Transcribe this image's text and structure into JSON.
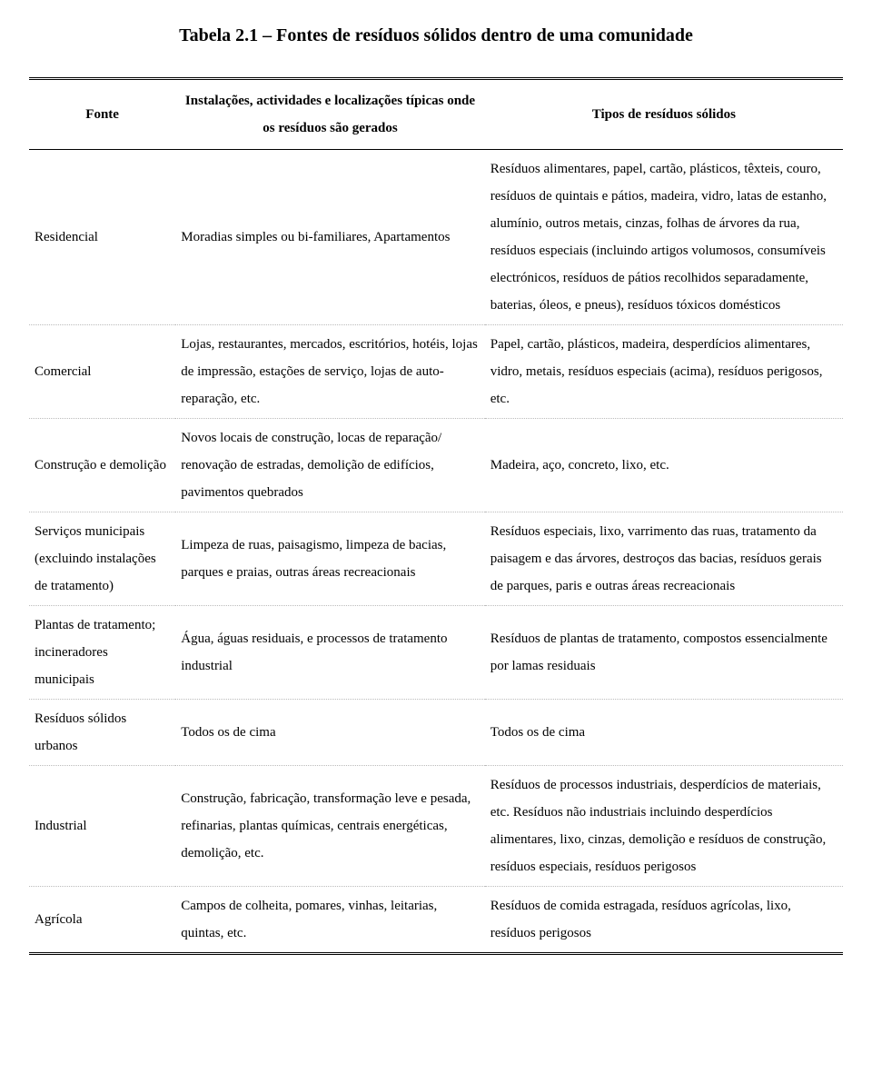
{
  "title": "Tabela 2.1 – Fontes de resíduos sólidos dentro de uma comunidade",
  "columns": {
    "c1": "Fonte",
    "c2": "Instalações, actividades e localizações típicas onde os resíduos são gerados",
    "c3": "Tipos de resíduos sólidos"
  },
  "rows": [
    {
      "fonte": "Residencial",
      "inst": "Moradias simples ou bi-familiares, Apartamentos",
      "tipos": "Resíduos alimentares, papel, cartão, plásticos, têxteis, couro, resíduos de quintais e pátios, madeira, vidro, latas de estanho, alumínio, outros metais, cinzas, folhas de árvores da rua, resíduos especiais (incluindo artigos volumosos, consumíveis electrónicos, resíduos de pátios recolhidos separadamente, baterias, óleos, e pneus), resíduos tóxicos domésticos"
    },
    {
      "fonte": "Comercial",
      "inst": "Lojas, restaurantes, mercados, escritórios, hotéis, lojas de impressão, estações de serviço, lojas de auto-reparação, etc.",
      "tipos": "Papel, cartão, plásticos, madeira, desperdícios alimentares, vidro, metais, resíduos especiais (acima), resíduos perigosos, etc."
    },
    {
      "fonte": "Construção e demolição",
      "inst": "Novos locais de construção, locas de reparação/ renovação de estradas, demolição de edifícios, pavimentos quebrados",
      "tipos": "Madeira, aço, concreto, lixo, etc."
    },
    {
      "fonte": "Serviços municipais (excluindo instalações de tratamento)",
      "inst": "Limpeza de ruas, paisagismo, limpeza de bacias, parques e praias, outras áreas recreacionais",
      "tipos": "Resíduos especiais, lixo, varrimento das ruas, tratamento da paisagem e das árvores, destroços das bacias, resíduos gerais de parques, paris e outras áreas recreacionais"
    },
    {
      "fonte": "Plantas de tratamento; incineradores municipais",
      "inst": "Água, águas residuais, e processos de tratamento industrial",
      "tipos": "Resíduos de plantas de tratamento, compostos essencialmente por lamas residuais"
    },
    {
      "fonte": "Resíduos sólidos urbanos",
      "inst": "Todos os de cima",
      "tipos": "Todos os de cima"
    },
    {
      "fonte": "Industrial",
      "inst": "Construção, fabricação, transformação leve e pesada, refinarias, plantas químicas, centrais energéticas, demolição, etc.",
      "tipos": "Resíduos de processos industriais, desperdícios de materiais, etc. Resíduos não industriais incluindo desperdícios alimentares, lixo, cinzas, demolição e resíduos de construção, resíduos especiais, resíduos perigosos"
    },
    {
      "fonte": "Agrícola",
      "inst": "Campos de colheita, pomares, vinhas, leitarias, quintas, etc.",
      "tipos": "Resíduos de comida estragada, resíduos agrícolas, lixo, resíduos perigosos"
    }
  ],
  "style": {
    "font_family": "Times New Roman",
    "title_fontsize_pt": 15,
    "body_fontsize_pt": 11,
    "line_height": 2.0,
    "background_color": "#ffffff",
    "text_color": "#000000",
    "row_separator_color": "#bbbbbb",
    "rule_color": "#000000",
    "col_widths_pct": [
      18,
      38,
      44
    ]
  }
}
